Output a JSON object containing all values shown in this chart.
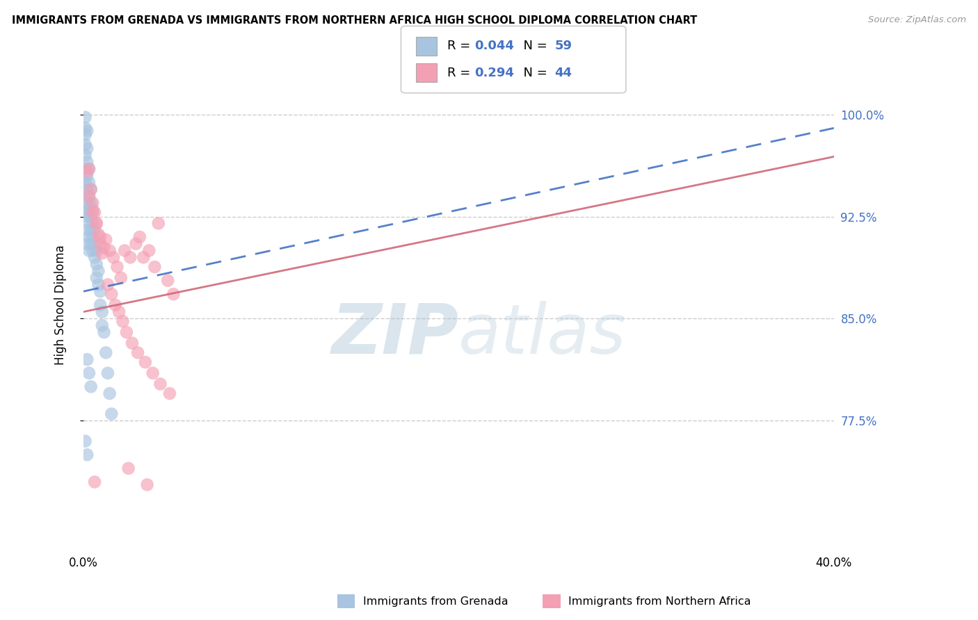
{
  "title": "IMMIGRANTS FROM GRENADA VS IMMIGRANTS FROM NORTHERN AFRICA HIGH SCHOOL DIPLOMA CORRELATION CHART",
  "source": "Source: ZipAtlas.com",
  "ylabel": "High School Diploma",
  "ytick_labels": [
    "100.0%",
    "92.5%",
    "85.0%",
    "77.5%"
  ],
  "ytick_values": [
    1.0,
    0.925,
    0.85,
    0.775
  ],
  "xlim": [
    0.0,
    0.4
  ],
  "ylim": [
    0.68,
    1.04
  ],
  "grenada_color": "#a8c4e0",
  "northern_africa_color": "#f4a0b4",
  "trendline_grenada_color": "#4472c4",
  "trendline_northern_color": "#d06878",
  "watermark_zip": "ZIP",
  "watermark_atlas": "atlas",
  "legend_label1": "Immigrants from Grenada",
  "legend_label2": "Immigrants from Northern Africa",
  "grenada_x": [
    0.001,
    0.001,
    0.001,
    0.001,
    0.001,
    0.001,
    0.001,
    0.001,
    0.001,
    0.001,
    0.002,
    0.002,
    0.002,
    0.002,
    0.002,
    0.002,
    0.002,
    0.002,
    0.002,
    0.003,
    0.003,
    0.003,
    0.003,
    0.003,
    0.003,
    0.003,
    0.004,
    0.004,
    0.004,
    0.004,
    0.004,
    0.005,
    0.005,
    0.005,
    0.005,
    0.006,
    0.006,
    0.006,
    0.007,
    0.007,
    0.007,
    0.008,
    0.008,
    0.009,
    0.009,
    0.01,
    0.01,
    0.011,
    0.012,
    0.013,
    0.014,
    0.015,
    0.002,
    0.003,
    0.004,
    0.001,
    0.002
  ],
  "grenada_y": [
    0.998,
    0.99,
    0.985,
    0.978,
    0.97,
    0.96,
    0.95,
    0.942,
    0.935,
    0.928,
    0.988,
    0.975,
    0.965,
    0.955,
    0.945,
    0.935,
    0.925,
    0.915,
    0.905,
    0.96,
    0.95,
    0.94,
    0.93,
    0.92,
    0.91,
    0.9,
    0.945,
    0.935,
    0.925,
    0.915,
    0.905,
    0.93,
    0.92,
    0.91,
    0.9,
    0.915,
    0.905,
    0.895,
    0.9,
    0.89,
    0.88,
    0.885,
    0.875,
    0.87,
    0.86,
    0.855,
    0.845,
    0.84,
    0.825,
    0.81,
    0.795,
    0.78,
    0.82,
    0.81,
    0.8,
    0.76,
    0.75
  ],
  "northern_x": [
    0.002,
    0.003,
    0.004,
    0.005,
    0.006,
    0.007,
    0.008,
    0.009,
    0.01,
    0.012,
    0.014,
    0.016,
    0.018,
    0.02,
    0.022,
    0.025,
    0.028,
    0.03,
    0.032,
    0.035,
    0.038,
    0.04,
    0.045,
    0.048,
    0.003,
    0.005,
    0.007,
    0.009,
    0.011,
    0.013,
    0.015,
    0.017,
    0.019,
    0.021,
    0.023,
    0.026,
    0.029,
    0.033,
    0.037,
    0.041,
    0.046,
    0.006,
    0.024,
    0.034
  ],
  "northern_y": [
    0.958,
    0.96,
    0.945,
    0.935,
    0.928,
    0.92,
    0.912,
    0.905,
    0.898,
    0.908,
    0.9,
    0.895,
    0.888,
    0.88,
    0.9,
    0.895,
    0.905,
    0.91,
    0.895,
    0.9,
    0.888,
    0.92,
    0.878,
    0.868,
    0.94,
    0.928,
    0.92,
    0.91,
    0.902,
    0.875,
    0.868,
    0.86,
    0.855,
    0.848,
    0.84,
    0.832,
    0.825,
    0.818,
    0.81,
    0.802,
    0.795,
    0.73,
    0.74,
    0.728
  ],
  "trendline_grenada_slope": 0.3,
  "trendline_grenada_intercept": 0.87,
  "trendline_northern_slope": 0.285,
  "trendline_northern_intercept": 0.855
}
